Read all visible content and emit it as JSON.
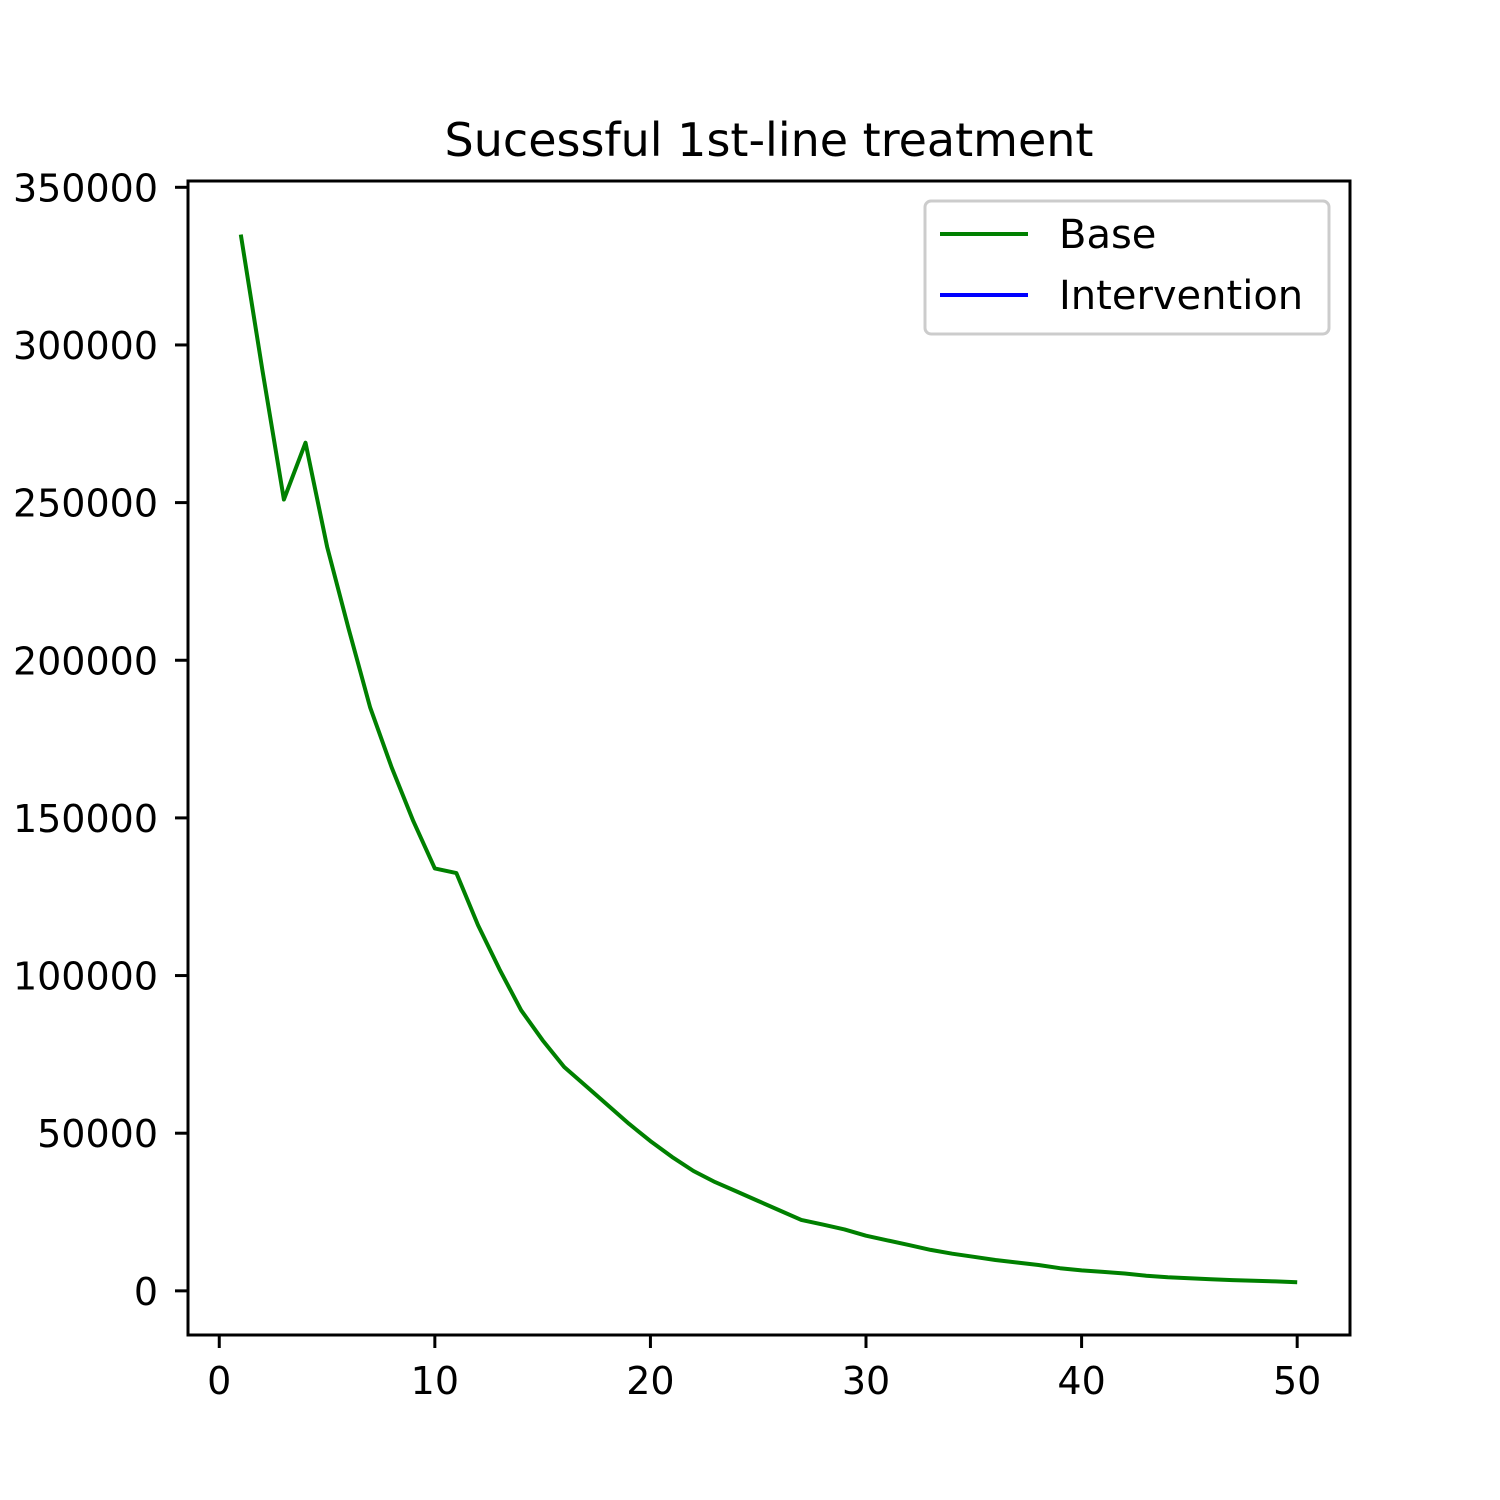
{
  "chart_data": {
    "type": "line",
    "title": "Sucessful 1st-line treatment",
    "xlabel": "",
    "ylabel": "",
    "xlim": [
      -1.45,
      52.45
    ],
    "ylim": [
      -14000,
      352000
    ],
    "xticks": [
      0,
      10,
      20,
      30,
      40,
      50
    ],
    "yticks": [
      0,
      50000,
      100000,
      150000,
      200000,
      250000,
      300000,
      350000
    ],
    "grid": false,
    "legend_position": "top-right",
    "series": [
      {
        "name": "Base",
        "color": "#008000",
        "x": [
          1,
          2,
          3,
          4,
          5,
          6,
          7,
          8,
          9,
          10,
          11,
          12,
          13,
          14,
          15,
          16,
          17,
          18,
          19,
          20,
          21,
          22,
          23,
          24,
          25,
          26,
          27,
          28,
          29,
          30,
          31,
          32,
          33,
          34,
          35,
          36,
          37,
          38,
          39,
          40,
          41,
          42,
          43,
          44,
          45,
          46,
          47,
          48,
          49,
          50
        ],
        "y": [
          335000,
          292000,
          251000,
          269000,
          236000,
          210000,
          185000,
          166000,
          149000,
          134000,
          132500,
          116000,
          102000,
          89000,
          79500,
          71000,
          65000,
          59000,
          53000,
          47500,
          42500,
          38000,
          34500,
          31500,
          28500,
          25500,
          22500,
          21000,
          19500,
          17500,
          16000,
          14500,
          13000,
          11800,
          10800,
          9800,
          9000,
          8200,
          7200,
          6500,
          6000,
          5500,
          4800,
          4300,
          4000,
          3700,
          3400,
          3200,
          3000,
          2700
        ]
      },
      {
        "name": "Intervention",
        "color": "#0000ff",
        "x": [],
        "y": []
      }
    ]
  }
}
